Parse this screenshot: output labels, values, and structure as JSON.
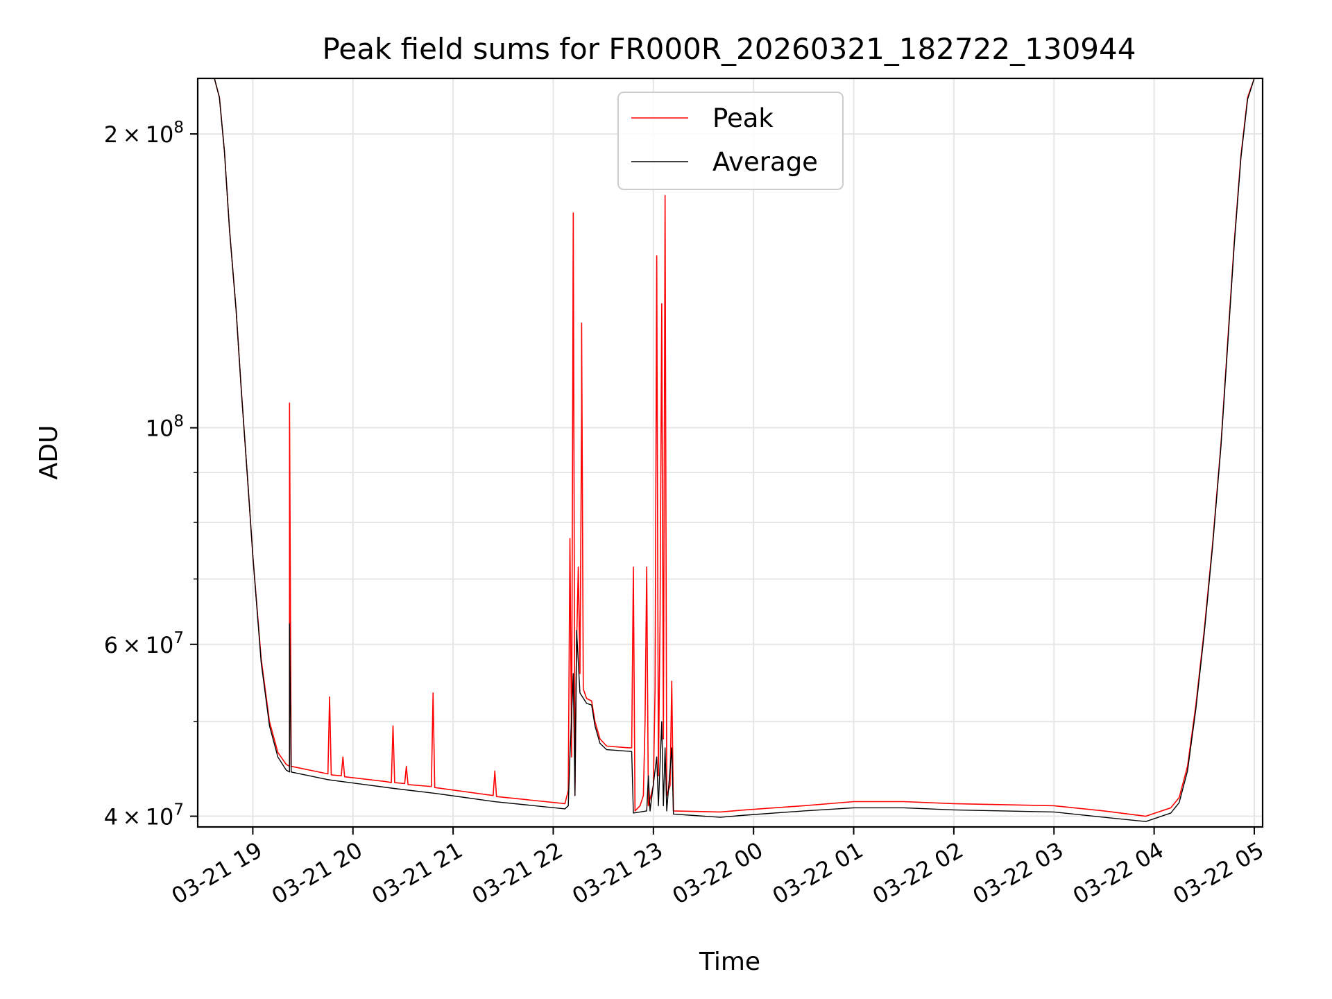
{
  "chart_data": {
    "type": "line",
    "title": "Peak field sums for FR000R_20260321_182722_130944",
    "xlabel": "Time",
    "ylabel": "ADU",
    "yscale": "log",
    "grid": true,
    "legend_position": "top-center",
    "xlim": [
      "2026-03-21 18:27",
      "2026-03-22 05:05"
    ],
    "ylim": [
      39000000,
      228000000
    ],
    "x_ticks": [
      {
        "value": "2026-03-21 19:00",
        "label": "03-21 19"
      },
      {
        "value": "2026-03-21 20:00",
        "label": "03-21 20"
      },
      {
        "value": "2026-03-21 21:00",
        "label": "03-21 21"
      },
      {
        "value": "2026-03-21 22:00",
        "label": "03-21 22"
      },
      {
        "value": "2026-03-21 23:00",
        "label": "03-21 23"
      },
      {
        "value": "2026-03-22 00:00",
        "label": "03-22 00"
      },
      {
        "value": "2026-03-22 01:00",
        "label": "03-22 01"
      },
      {
        "value": "2026-03-22 02:00",
        "label": "03-22 02"
      },
      {
        "value": "2026-03-22 03:00",
        "label": "03-22 03"
      },
      {
        "value": "2026-03-22 04:00",
        "label": "03-22 04"
      },
      {
        "value": "2026-03-22 05:00",
        "label": "03-22 05"
      }
    ],
    "y_ticks_major": [
      {
        "value": 40000000,
        "base": "4",
        "exp": "7"
      },
      {
        "value": 60000000,
        "base": "6",
        "exp": "7"
      },
      {
        "value": 100000000,
        "base": "",
        "exp": "8"
      },
      {
        "value": 200000000,
        "base": "2",
        "exp": "8"
      }
    ],
    "y_ticks_minor": [
      50000000,
      70000000,
      80000000,
      90000000
    ],
    "series": [
      {
        "name": "Peak",
        "color": "#ff0000",
        "points": [
          [
            "2026-03-21 18:27",
            228000000
          ],
          [
            "2026-03-21 18:37",
            228000000
          ],
          [
            "2026-03-21 18:40",
            218000000
          ],
          [
            "2026-03-21 18:43",
            192000000
          ],
          [
            "2026-03-21 18:46",
            160000000
          ],
          [
            "2026-03-21 18:50",
            132000000
          ],
          [
            "2026-03-21 18:53",
            110000000
          ],
          [
            "2026-03-21 18:57",
            88000000
          ],
          [
            "2026-03-21 19:00",
            74000000
          ],
          [
            "2026-03-21 19:05",
            58000000
          ],
          [
            "2026-03-21 19:10",
            50000000
          ],
          [
            "2026-03-21 19:15",
            46500000
          ],
          [
            "2026-03-21 19:20",
            45200000
          ],
          [
            "2026-03-21 19:22",
            45000000
          ],
          [
            "2026-03-21 19:22",
            106000000
          ],
          [
            "2026-03-21 19:23",
            45000000
          ],
          [
            "2026-03-21 19:45",
            44200000
          ],
          [
            "2026-03-21 19:46",
            53000000
          ],
          [
            "2026-03-21 19:47",
            44100000
          ],
          [
            "2026-03-21 19:53",
            44000000
          ],
          [
            "2026-03-21 19:54",
            46000000
          ],
          [
            "2026-03-21 19:55",
            43900000
          ],
          [
            "2026-03-21 20:20",
            43400000
          ],
          [
            "2026-03-21 20:23",
            43300000
          ],
          [
            "2026-03-21 20:24",
            49500000
          ],
          [
            "2026-03-21 20:25",
            43300000
          ],
          [
            "2026-03-21 20:31",
            43200000
          ],
          [
            "2026-03-21 20:32",
            45000000
          ],
          [
            "2026-03-21 20:33",
            43100000
          ],
          [
            "2026-03-21 20:47",
            42900000
          ],
          [
            "2026-03-21 20:48",
            53500000
          ],
          [
            "2026-03-21 20:49",
            42800000
          ],
          [
            "2026-03-21 21:24",
            42000000
          ],
          [
            "2026-03-21 21:25",
            44500000
          ],
          [
            "2026-03-21 21:26",
            41900000
          ],
          [
            "2026-03-21 22:07",
            41200000
          ],
          [
            "2026-03-21 22:09",
            42500000
          ],
          [
            "2026-03-21 22:10",
            77000000
          ],
          [
            "2026-03-21 22:11",
            46000000
          ],
          [
            "2026-03-21 22:12",
            166000000
          ],
          [
            "2026-03-21 22:13",
            42000000
          ],
          [
            "2026-03-21 22:14",
            60000000
          ],
          [
            "2026-03-21 22:15",
            72000000
          ],
          [
            "2026-03-21 22:16",
            56000000
          ],
          [
            "2026-03-21 22:17",
            104000000
          ],
          [
            "2026-03-21 22:17",
            128000000
          ],
          [
            "2026-03-21 22:18",
            54000000
          ],
          [
            "2026-03-21 22:20",
            52800000
          ],
          [
            "2026-03-21 22:23",
            52500000
          ],
          [
            "2026-03-21 22:25",
            50000000
          ],
          [
            "2026-03-21 22:28",
            48000000
          ],
          [
            "2026-03-21 22:32",
            47200000
          ],
          [
            "2026-03-21 22:45",
            47000000
          ],
          [
            "2026-03-21 22:47",
            47000000
          ],
          [
            "2026-03-21 22:48",
            72000000
          ],
          [
            "2026-03-21 22:49",
            40500000
          ],
          [
            "2026-03-21 22:52",
            41000000
          ],
          [
            "2026-03-21 22:54",
            42000000
          ],
          [
            "2026-03-21 22:55",
            50000000
          ],
          [
            "2026-03-21 22:56",
            72000000
          ],
          [
            "2026-03-21 22:57",
            41000000
          ],
          [
            "2026-03-21 23:00",
            43000000
          ],
          [
            "2026-03-21 23:01",
            54000000
          ],
          [
            "2026-03-21 23:02",
            150000000
          ],
          [
            "2026-03-21 23:03",
            44000000
          ],
          [
            "2026-03-21 23:04",
            64000000
          ],
          [
            "2026-03-21 23:05",
            134000000
          ],
          [
            "2026-03-21 23:06",
            48000000
          ],
          [
            "2026-03-21 23:07",
            173000000
          ],
          [
            "2026-03-21 23:08",
            42000000
          ],
          [
            "2026-03-21 23:10",
            43000000
          ],
          [
            "2026-03-21 23:11",
            55000000
          ],
          [
            "2026-03-21 23:12",
            40500000
          ],
          [
            "2026-03-21 23:40",
            40400000
          ],
          [
            "2026-03-21 23:55",
            40600000
          ],
          [
            "2026-03-22 00:30",
            41000000
          ],
          [
            "2026-03-22 01:00",
            41400000
          ],
          [
            "2026-03-22 01:30",
            41400000
          ],
          [
            "2026-03-22 02:00",
            41200000
          ],
          [
            "2026-03-22 02:30",
            41100000
          ],
          [
            "2026-03-22 03:00",
            41000000
          ],
          [
            "2026-03-22 03:30",
            40500000
          ],
          [
            "2026-03-22 03:55",
            40000000
          ],
          [
            "2026-03-22 04:10",
            40800000
          ],
          [
            "2026-03-22 04:15",
            41800000
          ],
          [
            "2026-03-22 04:20",
            45000000
          ],
          [
            "2026-03-22 04:25",
            52000000
          ],
          [
            "2026-03-22 04:30",
            62000000
          ],
          [
            "2026-03-22 04:35",
            76000000
          ],
          [
            "2026-03-22 04:40",
            96000000
          ],
          [
            "2026-03-22 04:44",
            122000000
          ],
          [
            "2026-03-22 04:48",
            155000000
          ],
          [
            "2026-03-22 04:52",
            190000000
          ],
          [
            "2026-03-22 04:56",
            218000000
          ],
          [
            "2026-03-22 05:00",
            228000000
          ],
          [
            "2026-03-22 05:05",
            228000000
          ]
        ]
      },
      {
        "name": "Average",
        "color": "#000000",
        "points": [
          [
            "2026-03-21 18:27",
            228000000
          ],
          [
            "2026-03-21 18:37",
            228000000
          ],
          [
            "2026-03-21 18:40",
            218000000
          ],
          [
            "2026-03-21 18:43",
            192000000
          ],
          [
            "2026-03-21 18:46",
            160000000
          ],
          [
            "2026-03-21 18:50",
            132000000
          ],
          [
            "2026-03-21 18:53",
            110000000
          ],
          [
            "2026-03-21 18:57",
            88000000
          ],
          [
            "2026-03-21 19:00",
            74000000
          ],
          [
            "2026-03-21 19:05",
            57500000
          ],
          [
            "2026-03-21 19:10",
            49500000
          ],
          [
            "2026-03-21 19:15",
            46000000
          ],
          [
            "2026-03-21 19:20",
            44600000
          ],
          [
            "2026-03-21 19:22",
            44400000
          ],
          [
            "2026-03-21 19:22",
            63000000
          ],
          [
            "2026-03-21 19:23",
            44400000
          ],
          [
            "2026-03-21 19:45",
            43600000
          ],
          [
            "2026-03-21 20:25",
            42700000
          ],
          [
            "2026-03-21 20:50",
            42200000
          ],
          [
            "2026-03-21 21:25",
            41400000
          ],
          [
            "2026-03-21 22:07",
            40700000
          ],
          [
            "2026-03-21 22:09",
            41000000
          ],
          [
            "2026-03-21 22:10",
            46000000
          ],
          [
            "2026-03-21 22:12",
            56000000
          ],
          [
            "2026-03-21 22:13",
            42000000
          ],
          [
            "2026-03-21 22:14",
            62000000
          ],
          [
            "2026-03-21 22:16",
            53500000
          ],
          [
            "2026-03-21 22:20",
            52200000
          ],
          [
            "2026-03-21 22:23",
            52000000
          ],
          [
            "2026-03-21 22:25",
            49500000
          ],
          [
            "2026-03-21 22:28",
            47500000
          ],
          [
            "2026-03-21 22:32",
            46800000
          ],
          [
            "2026-03-21 22:47",
            46600000
          ],
          [
            "2026-03-21 22:48",
            40300000
          ],
          [
            "2026-03-21 22:56",
            40500000
          ],
          [
            "2026-03-21 22:57",
            44000000
          ],
          [
            "2026-03-21 22:58",
            40500000
          ],
          [
            "2026-03-21 23:02",
            46000000
          ],
          [
            "2026-03-21 23:03",
            41000000
          ],
          [
            "2026-03-21 23:05",
            50000000
          ],
          [
            "2026-03-21 23:06",
            41000000
          ],
          [
            "2026-03-21 23:07",
            47000000
          ],
          [
            "2026-03-21 23:08",
            40500000
          ],
          [
            "2026-03-21 23:11",
            47000000
          ],
          [
            "2026-03-21 23:12",
            40200000
          ],
          [
            "2026-03-21 23:40",
            39900000
          ],
          [
            "2026-03-21 23:55",
            40100000
          ],
          [
            "2026-03-22 00:30",
            40500000
          ],
          [
            "2026-03-22 01:00",
            40800000
          ],
          [
            "2026-03-22 01:30",
            40800000
          ],
          [
            "2026-03-22 02:00",
            40600000
          ],
          [
            "2026-03-22 02:30",
            40500000
          ],
          [
            "2026-03-22 03:00",
            40400000
          ],
          [
            "2026-03-22 03:30",
            39900000
          ],
          [
            "2026-03-22 03:55",
            39500000
          ],
          [
            "2026-03-22 04:10",
            40300000
          ],
          [
            "2026-03-22 04:15",
            41300000
          ],
          [
            "2026-03-22 04:20",
            44500000
          ],
          [
            "2026-03-22 04:25",
            51500000
          ],
          [
            "2026-03-22 04:30",
            61500000
          ],
          [
            "2026-03-22 04:35",
            75500000
          ],
          [
            "2026-03-22 04:40",
            95500000
          ],
          [
            "2026-03-22 04:44",
            121000000
          ],
          [
            "2026-03-22 04:48",
            154000000
          ],
          [
            "2026-03-22 04:52",
            189000000
          ],
          [
            "2026-03-22 04:56",
            217000000
          ],
          [
            "2026-03-22 05:00",
            228000000
          ],
          [
            "2026-03-22 05:05",
            228000000
          ]
        ]
      }
    ]
  }
}
